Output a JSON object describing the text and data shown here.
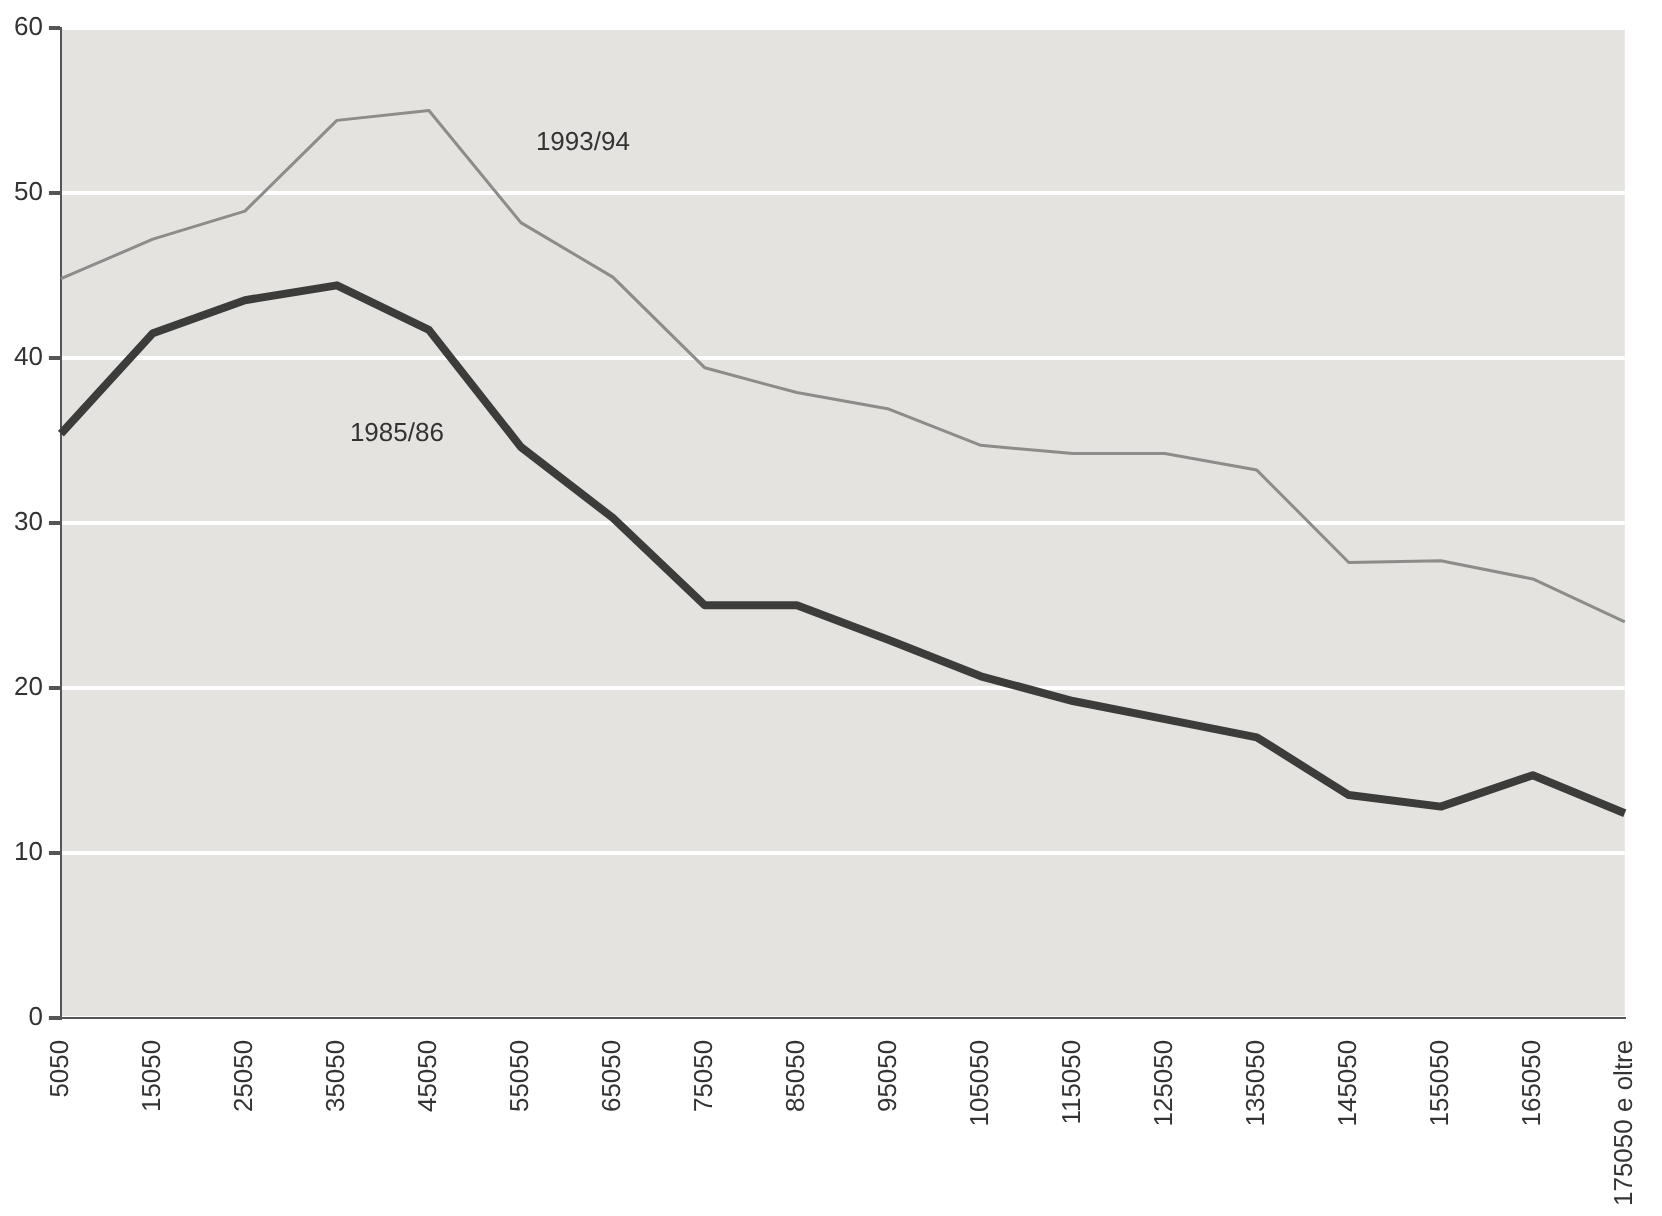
{
  "chart_data": {
    "type": "line",
    "categories": [
      "5050",
      "15050",
      "25050",
      "35050",
      "45050",
      "55050",
      "65050",
      "75050",
      "85050",
      "95050",
      "105050",
      "115050",
      "125050",
      "135050",
      "145050",
      "155050",
      "165050",
      "175050 e oltre"
    ],
    "series": [
      {
        "name": "1993/94",
        "color": "#8c8c8a",
        "values": [
          44.8,
          47.2,
          48.9,
          54.4,
          55,
          48.2,
          44.9,
          39.4,
          37.9,
          36.9,
          34.7,
          34.2,
          34.2,
          33.2,
          27.6,
          27.7,
          26.6,
          24
        ]
      },
      {
        "name": "1985/86",
        "color": "#3c3c3a",
        "values": [
          35.4,
          41.5,
          43.5,
          44.4,
          41.7,
          34.6,
          30.3,
          25,
          25,
          22.9,
          20.7,
          19.2,
          18.1,
          17,
          13.5,
          12.8,
          14.7,
          12.4
        ]
      }
    ],
    "ylim": [
      0,
      60
    ],
    "yticks": [
      0,
      10,
      20,
      30,
      40,
      50,
      60
    ],
    "grid": "y",
    "legend": false,
    "marker": "none",
    "line_style": "solid"
  }
}
